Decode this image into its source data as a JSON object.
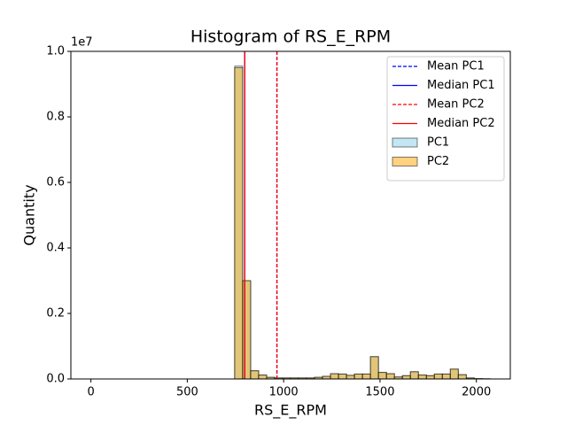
{
  "chart_data": {
    "type": "histogram",
    "title": "Histogram of RS_E_RPM",
    "x_label": "RS_E_RPM",
    "y_label": "Quantity",
    "y_offset_label": "1e7",
    "bins": [
      0,
      41.4,
      82.9,
      124.3,
      165.8,
      207.2,
      248.6,
      290.1,
      331.5,
      373.0,
      414.4,
      455.8,
      497.3,
      538.7,
      580.2,
      621.6,
      663.0,
      704.5,
      745.9,
      787.4,
      828.8,
      870.2,
      911.7,
      953.1,
      994.6,
      1036.0,
      1077.4,
      1118.9,
      1160.3,
      1201.8,
      1243.2,
      1284.6,
      1326.1,
      1367.5,
      1409.0,
      1450.4,
      1491.8,
      1533.3,
      1574.7,
      1616.2,
      1657.6,
      1699.0,
      1740.5,
      1781.9,
      1823.4,
      1864.8,
      1906.2,
      1947.7,
      1989.1,
      2030.6,
      2072.0
    ],
    "series": [
      {
        "name": "PC1",
        "color": "#87ceeb",
        "values": [
          0,
          0,
          0,
          0,
          0,
          0,
          0,
          0,
          0,
          0,
          0,
          0,
          0,
          0,
          0,
          0,
          0,
          0,
          9550000,
          3000000,
          250000,
          120000,
          50000,
          30000,
          30000,
          30000,
          30000,
          30000,
          50000,
          80000,
          160000,
          150000,
          110000,
          150000,
          150000,
          680000,
          200000,
          160000,
          60000,
          100000,
          220000,
          120000,
          100000,
          150000,
          150000,
          300000,
          130000,
          30000,
          10000,
          5000
        ]
      },
      {
        "name": "PC2",
        "color": "#ffa500",
        "values": [
          0,
          0,
          0,
          0,
          0,
          0,
          0,
          0,
          0,
          0,
          0,
          0,
          0,
          0,
          0,
          0,
          0,
          0,
          9500000,
          3000000,
          250000,
          120000,
          50000,
          30000,
          30000,
          30000,
          30000,
          30000,
          50000,
          80000,
          160000,
          150000,
          110000,
          150000,
          150000,
          680000,
          200000,
          160000,
          60000,
          100000,
          220000,
          120000,
          100000,
          150000,
          150000,
          300000,
          130000,
          30000,
          10000,
          5000
        ]
      }
    ],
    "vlines": [
      {
        "name": "Mean PC1",
        "color": "#0000ff",
        "style": "dashed",
        "x": 965
      },
      {
        "name": "Median PC1",
        "color": "#0000ff",
        "style": "solid",
        "x": 798
      },
      {
        "name": "Mean PC2",
        "color": "#ff0000",
        "style": "dashed",
        "x": 965
      },
      {
        "name": "Median PC2",
        "color": "#ff0000",
        "style": "solid",
        "x": 798
      }
    ],
    "xlim": [
      -104,
      2176
    ],
    "ylim": [
      0,
      10000000
    ],
    "xticks": [
      0,
      500,
      1000,
      1500,
      2000
    ],
    "yticks": [
      {
        "value": 0,
        "label": "0.0"
      },
      {
        "value": 2000000,
        "label": "0.2"
      },
      {
        "value": 4000000,
        "label": "0.4"
      },
      {
        "value": 6000000,
        "label": "0.6"
      },
      {
        "value": 8000000,
        "label": "0.8"
      },
      {
        "value": 10000000,
        "label": "1.0"
      }
    ],
    "legend": "upper right"
  }
}
